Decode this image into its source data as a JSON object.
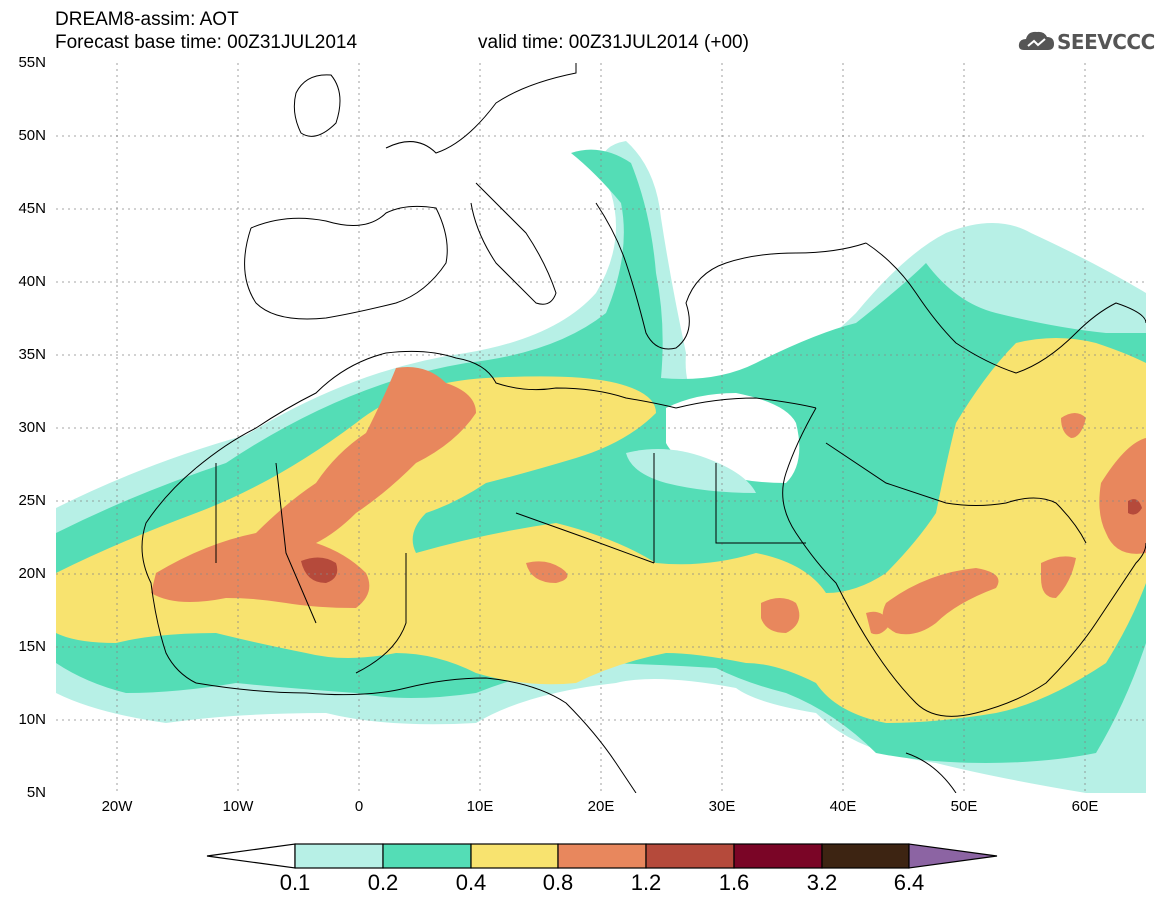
{
  "title_line1": "DREAM8-assim: AOT",
  "title_line2": "Forecast base time: 00Z31JUL2014",
  "valid_time": "valid time: 00Z31JUL2014 (+00)",
  "logo_text": "SEEVCCC",
  "logo_icon": "cloud-icon",
  "lat_labels": [
    "55N",
    "50N",
    "45N",
    "40N",
    "35N",
    "30N",
    "25N",
    "20N",
    "15N",
    "10N",
    "5N"
  ],
  "lon_labels": [
    "20W",
    "10W",
    "0",
    "10E",
    "20E",
    "30E",
    "40E",
    "50E",
    "60E"
  ],
  "colorbar": {
    "levels": [
      "0.1",
      "0.2",
      "0.4",
      "0.8",
      "1.2",
      "1.6",
      "3.2",
      "6.4"
    ],
    "colors": [
      "#ffffff",
      "#b7f0e6",
      "#54ddb6",
      "#f8e36f",
      "#e8875d",
      "#b54a3b",
      "#7a0526",
      "#3d2412",
      "#8c64a3"
    ]
  }
}
